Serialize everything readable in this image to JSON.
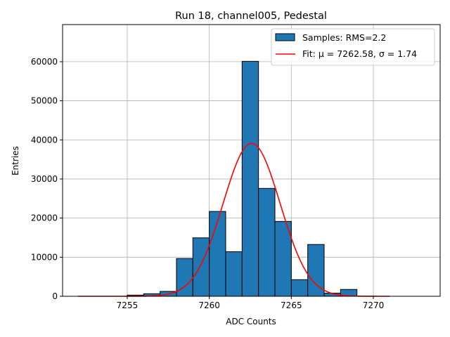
{
  "chart_data": {
    "type": "bar",
    "title": "Run 18, channel005, Pedestal",
    "xlabel": "ADC Counts",
    "ylabel": "Entries",
    "xlim": [
      7251.06,
      7274.07
    ],
    "ylim": [
      0,
      69500
    ],
    "xticks": [
      7255,
      7260,
      7265,
      7270
    ],
    "yticks": [
      0,
      10000,
      20000,
      30000,
      40000,
      50000,
      60000
    ],
    "grid": true,
    "legend_position": "top-right",
    "bin_edges": [
      7255,
      7256,
      7257,
      7258,
      7259,
      7260,
      7261,
      7262,
      7263,
      7264,
      7265,
      7266,
      7267,
      7268,
      7269
    ],
    "values": [
      300,
      650,
      1250,
      9650,
      14950,
      21700,
      11400,
      60100,
      27600,
      19150,
      4250,
      13250,
      800,
      1750
    ],
    "bar_color": "#1f77b4",
    "fit": {
      "mu": 7262.58,
      "sigma": 1.74,
      "amplitude": 39100,
      "range": [
        7252,
        7271
      ],
      "color": "#ff0000"
    },
    "legend": [
      {
        "label": "Samples: RMS=2.2",
        "kind": "patch"
      },
      {
        "label": "Fit: μ = 7262.58, σ = 1.74",
        "kind": "line"
      }
    ]
  }
}
